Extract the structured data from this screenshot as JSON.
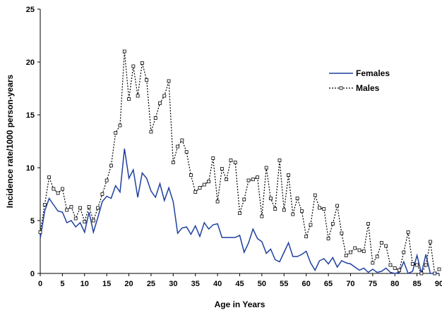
{
  "chart_data": {
    "type": "line",
    "title": "",
    "xlabel": "Age in Years",
    "ylabel": "Incidence rate/1000 person-years",
    "xlim": [
      0,
      90
    ],
    "ylim": [
      0,
      25
    ],
    "xticks": [
      0,
      5,
      10,
      15,
      20,
      25,
      30,
      35,
      40,
      45,
      50,
      55,
      60,
      65,
      70,
      75,
      80,
      85,
      90
    ],
    "yticks": [
      0,
      5,
      10,
      15,
      20,
      25
    ],
    "grid": false,
    "legend_position": "top-right",
    "series": [
      {
        "name": "Females",
        "color": "#1f3f9f",
        "style": "solid",
        "marker": "none",
        "x": [
          0,
          1,
          2,
          3,
          4,
          5,
          6,
          7,
          8,
          9,
          10,
          11,
          12,
          13,
          14,
          15,
          16,
          17,
          18,
          19,
          20,
          21,
          22,
          23,
          24,
          25,
          26,
          27,
          28,
          29,
          30,
          31,
          32,
          33,
          34,
          35,
          36,
          37,
          38,
          39,
          40,
          41,
          42,
          43,
          44,
          45,
          46,
          47,
          48,
          49,
          50,
          51,
          52,
          53,
          54,
          55,
          56,
          57,
          58,
          59,
          60,
          61,
          62,
          63,
          64,
          65,
          66,
          67,
          68,
          69,
          70,
          71,
          72,
          73,
          74,
          75,
          76,
          77,
          78,
          79,
          80,
          81,
          82,
          83,
          84,
          85,
          86,
          87,
          88,
          89,
          90
        ],
        "y": [
          3.3,
          5.9,
          7.1,
          6.5,
          5.9,
          5.8,
          4.8,
          5.0,
          4.4,
          4.8,
          3.9,
          5.8,
          3.9,
          5.3,
          6.8,
          7.3,
          7.1,
          8.3,
          7.7,
          11.8,
          9.0,
          9.8,
          7.2,
          9.5,
          9.0,
          7.8,
          7.2,
          8.5,
          6.9,
          8.1,
          6.8,
          3.8,
          4.3,
          4.4,
          3.7,
          4.5,
          3.5,
          4.8,
          4.2,
          4.6,
          4.7,
          3.4,
          3.4,
          3.4,
          3.4,
          3.6,
          2.0,
          2.9,
          4.2,
          3.3,
          3.0,
          1.9,
          2.3,
          1.3,
          1.1,
          2.0,
          2.9,
          1.6,
          1.6,
          1.8,
          2.1,
          1.0,
          0.3,
          1.2,
          1.4,
          0.9,
          1.5,
          0.6,
          1.2,
          1.0,
          0.9,
          0.6,
          0.3,
          0.5,
          0.1,
          0.4,
          0.1,
          0.2,
          0.5,
          0.1,
          0.0,
          0.1,
          1.1,
          0.0,
          0.2,
          1.7,
          0.0,
          1.8,
          0.0,
          0.0,
          0.0
        ]
      },
      {
        "name": "Males",
        "color": "#000000",
        "style": "dotted",
        "marker": "square",
        "x": [
          0,
          1,
          2,
          3,
          4,
          5,
          6,
          7,
          8,
          9,
          10,
          11,
          12,
          13,
          14,
          15,
          16,
          17,
          18,
          19,
          20,
          21,
          22,
          23,
          24,
          25,
          26,
          27,
          28,
          29,
          30,
          31,
          32,
          33,
          34,
          35,
          36,
          37,
          38,
          39,
          40,
          41,
          42,
          43,
          44,
          45,
          46,
          47,
          48,
          49,
          50,
          51,
          52,
          53,
          54,
          55,
          56,
          57,
          58,
          59,
          60,
          61,
          62,
          63,
          64,
          65,
          66,
          67,
          68,
          69,
          70,
          71,
          72,
          73,
          74,
          75,
          76,
          77,
          78,
          79,
          80,
          81,
          82,
          83,
          84,
          85,
          86,
          87,
          88,
          89,
          90
        ],
        "y": [
          3.9,
          6.5,
          9.1,
          8.0,
          7.6,
          8.0,
          6.0,
          6.3,
          5.2,
          6.2,
          4.9,
          6.3,
          5.0,
          6.2,
          7.5,
          8.8,
          10.2,
          13.3,
          14.0,
          21.0,
          16.5,
          19.6,
          16.8,
          19.9,
          18.3,
          13.4,
          14.7,
          16.1,
          16.8,
          18.2,
          10.5,
          12.0,
          12.6,
          11.5,
          9.3,
          7.7,
          8.1,
          8.4,
          8.7,
          10.9,
          6.8,
          9.9,
          8.9,
          10.7,
          10.5,
          5.7,
          7.0,
          8.8,
          8.9,
          9.1,
          5.4,
          10.0,
          7.1,
          6.1,
          10.7,
          6.0,
          9.3,
          5.6,
          7.1,
          5.9,
          3.5,
          4.6,
          7.4,
          6.2,
          6.1,
          3.3,
          4.7,
          6.4,
          3.8,
          1.7,
          2.0,
          2.4,
          2.2,
          2.1,
          4.7,
          1.0,
          1.6,
          2.9,
          2.6,
          0.8,
          0.5,
          0.3,
          2.0,
          3.9,
          0.9,
          0.8,
          0.0,
          0.8,
          3.0,
          0.0,
          0.4
        ]
      }
    ]
  }
}
